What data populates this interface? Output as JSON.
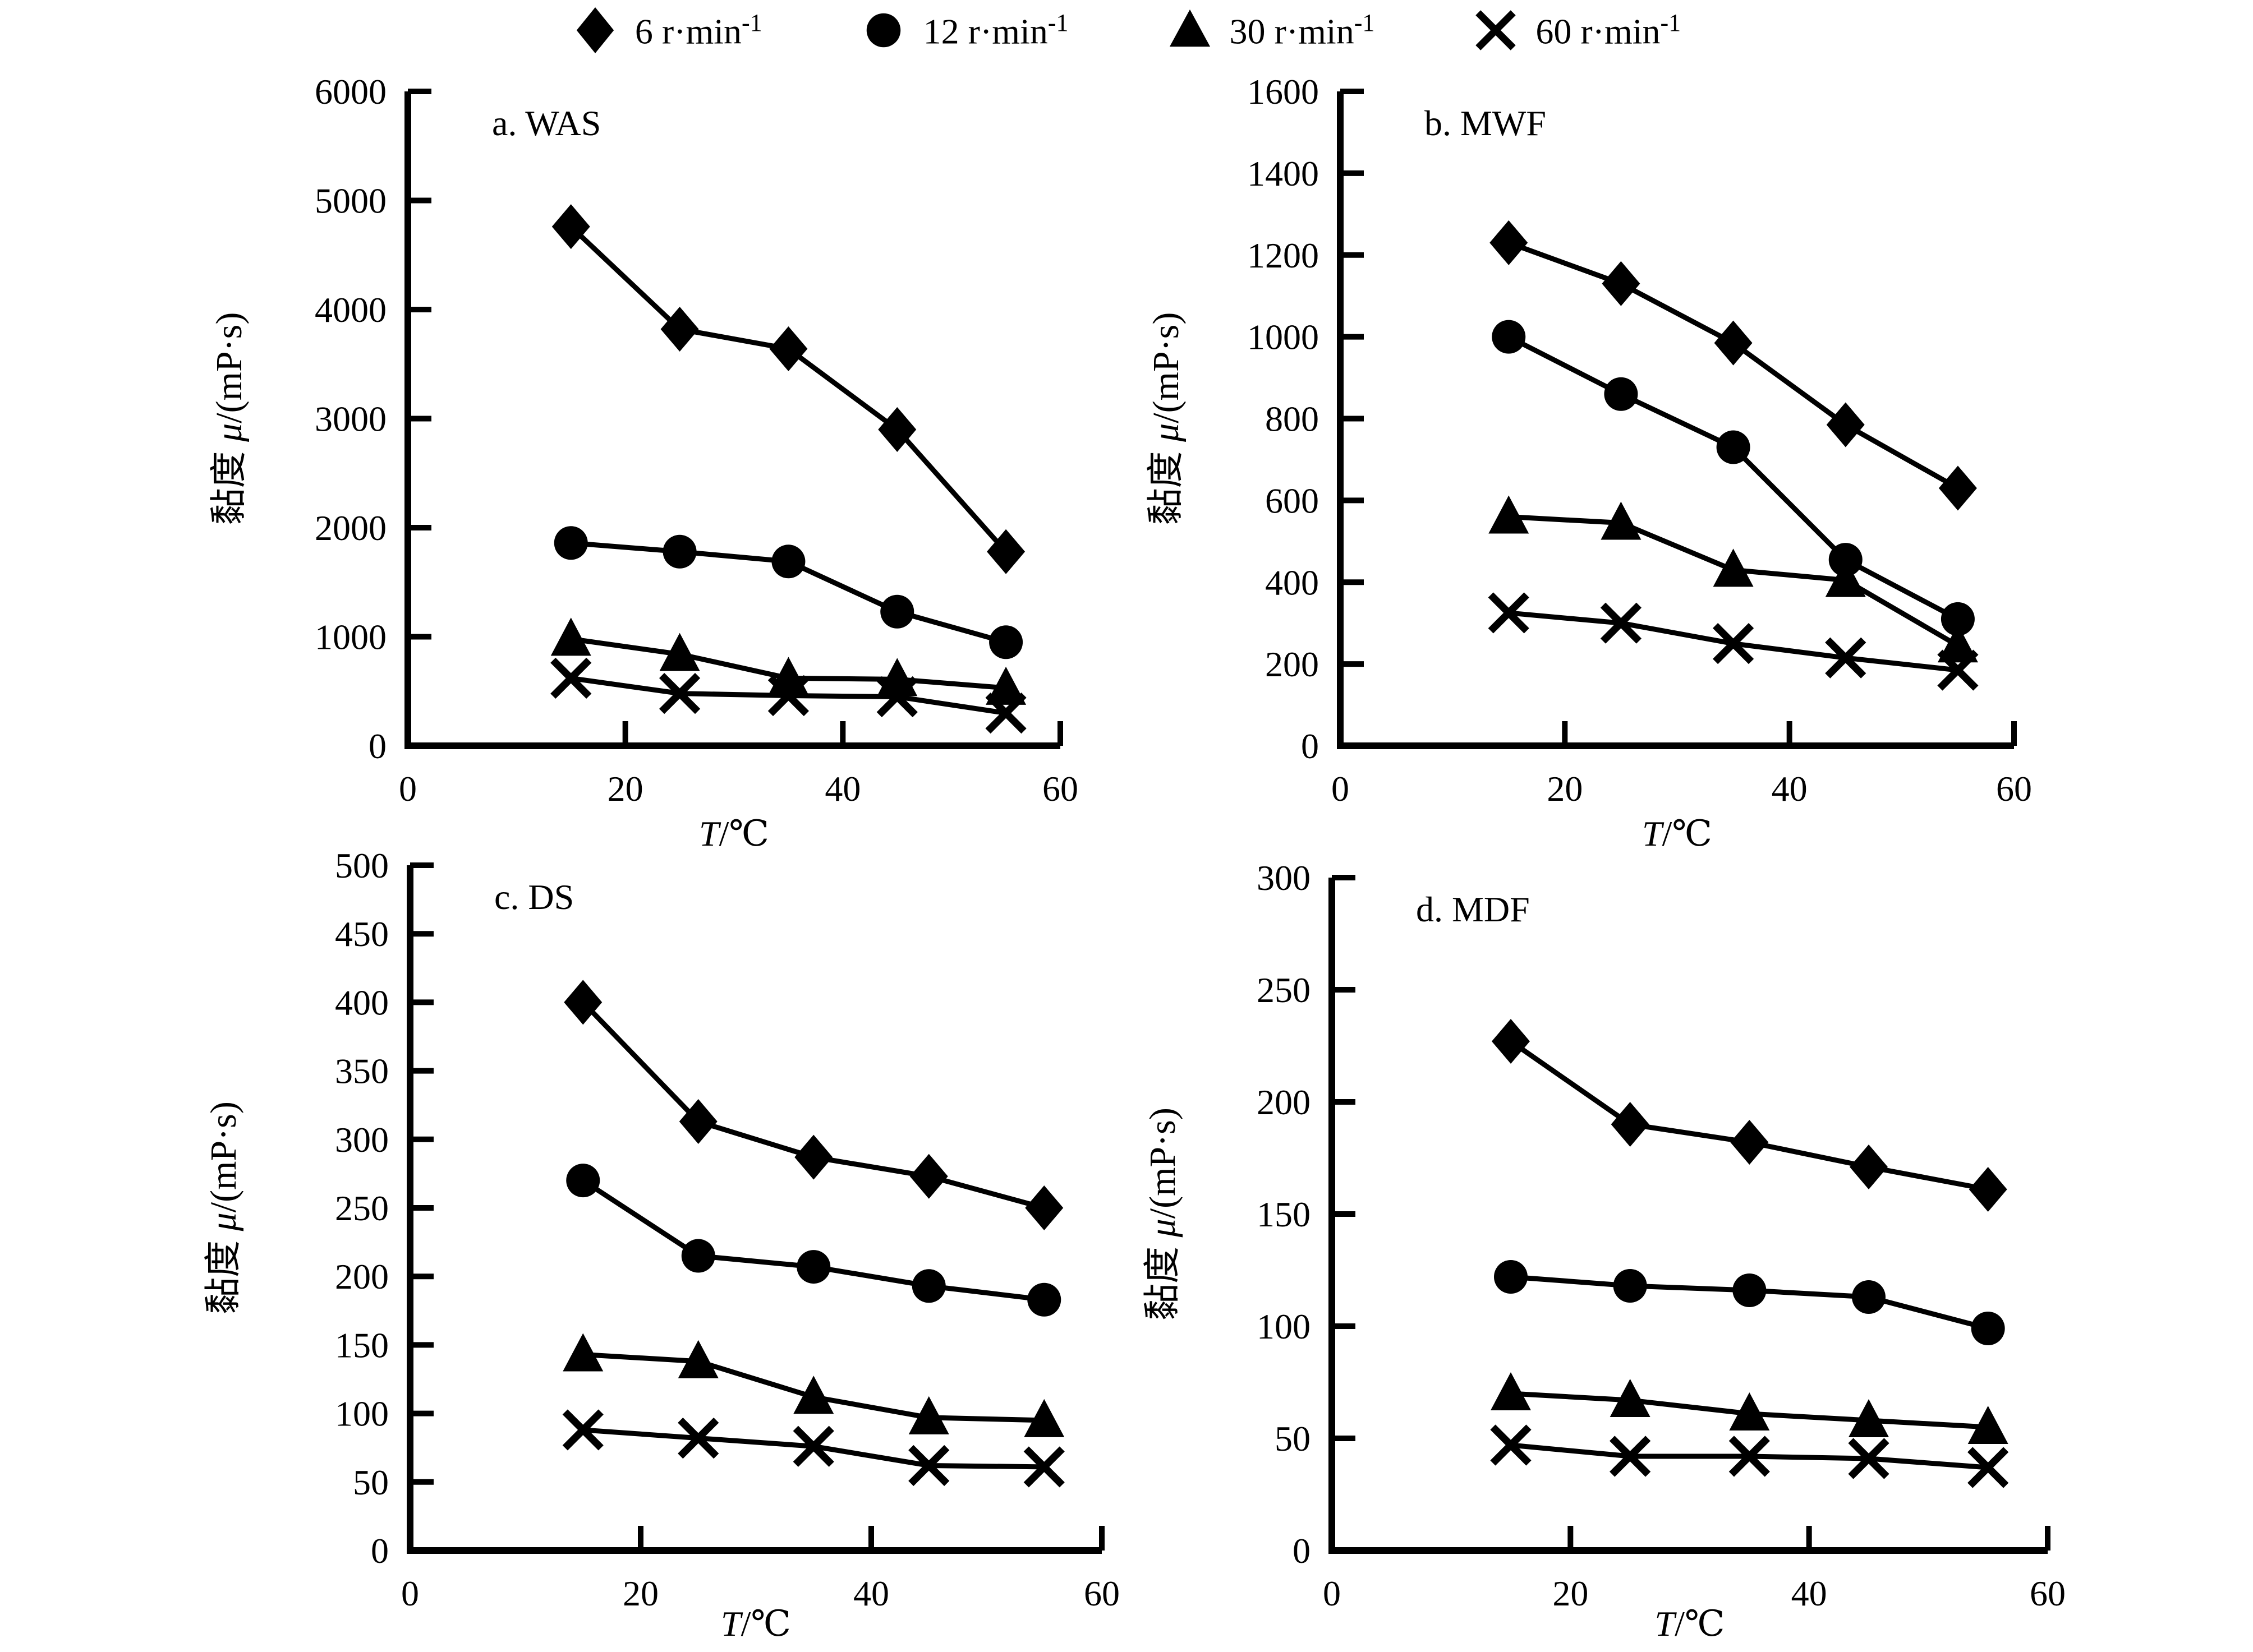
{
  "figure": {
    "background": "#ffffff",
    "ink_color": "#000000",
    "panel_count": 4
  },
  "legend": {
    "items": [
      {
        "marker": "diamond",
        "label": "6 r·min",
        "sup": "-1"
      },
      {
        "marker": "circle",
        "label": "12 r·min",
        "sup": "-1"
      },
      {
        "marker": "triangle",
        "label": "30 r·min",
        "sup": "-1"
      },
      {
        "marker": "x",
        "label": "60 r·min",
        "sup": "-1"
      }
    ]
  },
  "chart_data": [
    {
      "type": "line",
      "panel_label": "a. WAS",
      "xlabel": "T/℃",
      "xlabel_italic": "T",
      "xlabel_rest": "/℃",
      "ylabel": "黏度 μ/(mP·s)",
      "ylabel_prefix": "黏度 ",
      "ylabel_italic": "μ",
      "ylabel_rest": "/(mP·s)",
      "x": [
        15,
        25,
        35,
        45,
        55
      ],
      "xlim": [
        0,
        60
      ],
      "xticks": [
        0,
        20,
        40,
        60
      ],
      "ylim": [
        0,
        6000
      ],
      "yticks": [
        0,
        1000,
        2000,
        3000,
        4000,
        5000,
        6000
      ],
      "grid": false,
      "legend_position": "top",
      "series": [
        {
          "name": "6 r·min⁻¹",
          "marker": "diamond",
          "values": [
            4760,
            3820,
            3640,
            2900,
            1780
          ]
        },
        {
          "name": "12 r·min⁻¹",
          "marker": "circle",
          "values": [
            1860,
            1780,
            1690,
            1230,
            950
          ]
        },
        {
          "name": "30 r·min⁻¹",
          "marker": "triangle",
          "values": [
            980,
            840,
            620,
            610,
            530
          ]
        },
        {
          "name": "60 r·min⁻¹",
          "marker": "x",
          "values": [
            620,
            480,
            460,
            450,
            300
          ]
        }
      ]
    },
    {
      "type": "line",
      "panel_label": "b. MWF",
      "xlabel": "T/℃",
      "xlabel_italic": "T",
      "xlabel_rest": "/℃",
      "ylabel": "黏度 μ/(mP·s)",
      "ylabel_prefix": "黏度 ",
      "ylabel_italic": "μ",
      "ylabel_rest": "/(mP·s)",
      "x": [
        15,
        25,
        35,
        45,
        55
      ],
      "xlim": [
        0,
        60
      ],
      "xticks": [
        0,
        20,
        40,
        60
      ],
      "ylim": [
        0,
        1600
      ],
      "yticks": [
        0,
        200,
        400,
        600,
        800,
        1000,
        1200,
        1400,
        1600
      ],
      "grid": false,
      "legend_position": "top",
      "series": [
        {
          "name": "6 r·min⁻¹",
          "marker": "diamond",
          "values": [
            1230,
            1130,
            985,
            785,
            630
          ]
        },
        {
          "name": "12 r·min⁻¹",
          "marker": "circle",
          "values": [
            1000,
            860,
            730,
            455,
            310
          ]
        },
        {
          "name": "30 r·min⁻¹",
          "marker": "triangle",
          "values": [
            560,
            545,
            430,
            405,
            245
          ]
        },
        {
          "name": "60 r·min⁻¹",
          "marker": "x",
          "values": [
            325,
            300,
            250,
            215,
            185
          ]
        }
      ]
    },
    {
      "type": "line",
      "panel_label": "c. DS",
      "xlabel": "T/℃",
      "xlabel_italic": "T",
      "xlabel_rest": "/℃",
      "ylabel": "黏度 μ/(mP·s)",
      "ylabel_prefix": "黏度 ",
      "ylabel_italic": "μ",
      "ylabel_rest": "/(mP·s)",
      "x": [
        15,
        25,
        35,
        45,
        55
      ],
      "xlim": [
        0,
        60
      ],
      "xticks": [
        0,
        20,
        40,
        60
      ],
      "ylim": [
        0,
        500
      ],
      "yticks": [
        0,
        50,
        100,
        150,
        200,
        250,
        300,
        350,
        400,
        450,
        500
      ],
      "grid": false,
      "legend_position": "top",
      "series": [
        {
          "name": "6 r·min⁻¹",
          "marker": "diamond",
          "values": [
            400,
            313,
            287,
            273,
            250
          ]
        },
        {
          "name": "12 r·min⁻¹",
          "marker": "circle",
          "values": [
            270,
            215,
            207,
            193,
            183
          ]
        },
        {
          "name": "30 r·min⁻¹",
          "marker": "triangle",
          "values": [
            143,
            138,
            112,
            97,
            95
          ]
        },
        {
          "name": "60 r·min⁻¹",
          "marker": "x",
          "values": [
            88,
            82,
            76,
            62,
            61
          ]
        }
      ]
    },
    {
      "type": "line",
      "panel_label": "d. MDF",
      "xlabel": "T/℃",
      "xlabel_italic": "T",
      "xlabel_rest": "/℃",
      "ylabel": "黏度 μ/(mP·s)",
      "ylabel_prefix": "黏度 ",
      "ylabel_italic": "μ",
      "ylabel_rest": "/(mP·s)",
      "x": [
        15,
        25,
        35,
        45,
        55
      ],
      "xlim": [
        0,
        60
      ],
      "xticks": [
        0,
        20,
        40,
        60
      ],
      "ylim": [
        0,
        300
      ],
      "yticks": [
        0,
        50,
        100,
        150,
        200,
        250,
        300
      ],
      "grid": false,
      "legend_position": "top",
      "series": [
        {
          "name": "6 r·min⁻¹",
          "marker": "diamond",
          "values": [
            227,
            190,
            182,
            171,
            161
          ]
        },
        {
          "name": "12 r·min⁻¹",
          "marker": "circle",
          "values": [
            122,
            118,
            116,
            113,
            99
          ]
        },
        {
          "name": "30 r·min⁻¹",
          "marker": "triangle",
          "values": [
            70,
            67,
            61,
            58,
            55
          ]
        },
        {
          "name": "60 r·min⁻¹",
          "marker": "x",
          "values": [
            47,
            42,
            42,
            41,
            37
          ]
        }
      ]
    }
  ]
}
